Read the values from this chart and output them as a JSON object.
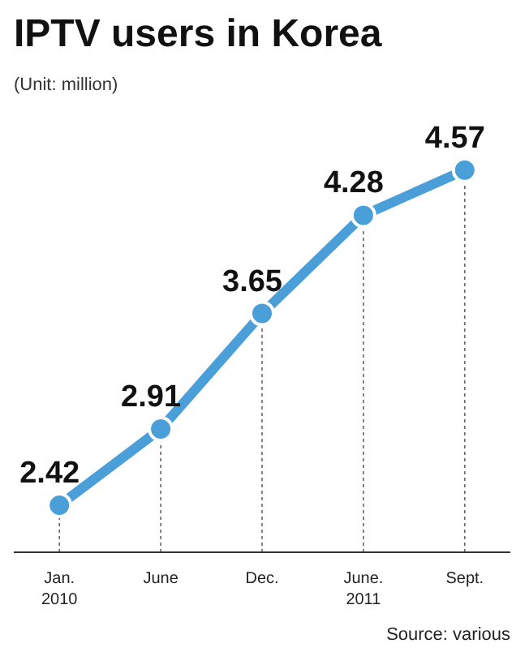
{
  "chart_data": {
    "type": "line",
    "title": "IPTV users in Korea",
    "subtitle": "(Unit: million)",
    "categories": [
      "Jan.\n2010",
      "June",
      "Dec.",
      "June.\n2011",
      "Sept."
    ],
    "series": [
      {
        "color": "#4a9fd8",
        "values": [
          2.42,
          2.91,
          3.65,
          4.28,
          4.57
        ]
      }
    ],
    "data_labels": true,
    "marker": "circle",
    "line_style": "solid",
    "grid": "x",
    "tick_labels": "x",
    "annotations": [
      "Source: various"
    ]
  }
}
